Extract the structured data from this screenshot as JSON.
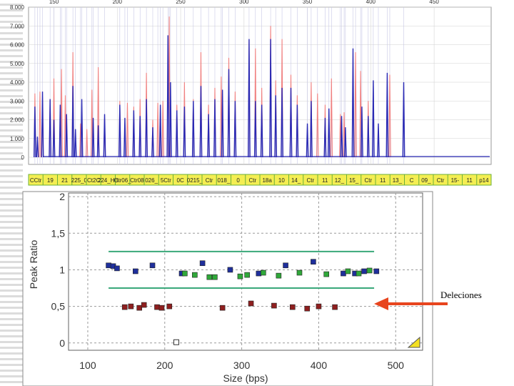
{
  "annotation": {
    "label": "Deleciones",
    "arrow_color": "#e8451e"
  },
  "chart_data": [
    {
      "type": "line",
      "title": "",
      "xlabel": "",
      "ylabel": "",
      "x_ticks": [
        "150",
        "200",
        "250",
        "300",
        "350",
        "400",
        "450"
      ],
      "y_ticks": [
        "8.000",
        "7.000",
        "6.000",
        "5.000",
        "4.000",
        "3.000",
        "2.000",
        "1.000",
        "0"
      ],
      "xlim": [
        130,
        495
      ],
      "ylim": [
        0,
        8000
      ],
      "grid": true,
      "colors": {
        "series_a": "#f08080",
        "series_b": "#2a2ab4"
      },
      "series": [
        {
          "peaks": [
            {
              "x": 135,
              "y": 3400
            },
            {
              "x": 139,
              "y": 3500
            },
            {
              "x": 141,
              "y": 3000
            },
            {
              "x": 147,
              "y": 3100
            },
            {
              "x": 150,
              "y": 4200
            },
            {
              "x": 156,
              "y": 4700
            },
            {
              "x": 159,
              "y": 3300
            },
            {
              "x": 165,
              "y": 5600
            },
            {
              "x": 171,
              "y": 1800
            },
            {
              "x": 176,
              "y": 1500
            },
            {
              "x": 180,
              "y": 3600
            },
            {
              "x": 185,
              "y": 4800
            },
            {
              "x": 190,
              "y": 2100
            },
            {
              "x": 202,
              "y": 3000
            },
            {
              "x": 208,
              "y": 2900
            },
            {
              "x": 213,
              "y": 2700
            },
            {
              "x": 218,
              "y": 3100
            },
            {
              "x": 223,
              "y": 4500
            },
            {
              "x": 228,
              "y": 2000
            },
            {
              "x": 232,
              "y": 2900
            },
            {
              "x": 236,
              "y": 3000
            },
            {
              "x": 241,
              "y": 7500
            },
            {
              "x": 247,
              "y": 2800
            },
            {
              "x": 253,
              "y": 4000
            },
            {
              "x": 260,
              "y": 3100
            },
            {
              "x": 266,
              "y": 5600
            },
            {
              "x": 272,
              "y": 2800
            },
            {
              "x": 277,
              "y": 3700
            },
            {
              "x": 282,
              "y": 4300
            },
            {
              "x": 288,
              "y": 5300
            },
            {
              "x": 293,
              "y": 3500
            },
            {
              "x": 304,
              "y": 6200
            },
            {
              "x": 309,
              "y": 5800
            },
            {
              "x": 314,
              "y": 3700
            },
            {
              "x": 321,
              "y": 7000
            },
            {
              "x": 325,
              "y": 4100
            },
            {
              "x": 330,
              "y": 6300
            },
            {
              "x": 337,
              "y": 4400
            },
            {
              "x": 342,
              "y": 3300
            },
            {
              "x": 353,
              "y": 4000
            },
            {
              "x": 358,
              "y": 3400
            },
            {
              "x": 364,
              "y": 2800
            },
            {
              "x": 369,
              "y": 4200
            },
            {
              "x": 376,
              "y": 2300
            },
            {
              "x": 379,
              "y": 2400
            },
            {
              "x": 388,
              "y": 5600
            },
            {
              "x": 392,
              "y": 4600
            },
            {
              "x": 398,
              "y": 3000
            },
            {
              "x": 415,
              "y": 4400
            }
          ]
        },
        {
          "peaks": [
            {
              "x": 135,
              "y": 2700
            },
            {
              "x": 137,
              "y": 1100
            },
            {
              "x": 141,
              "y": 3500
            },
            {
              "x": 147,
              "y": 3100
            },
            {
              "x": 150,
              "y": 2000
            },
            {
              "x": 155,
              "y": 2800
            },
            {
              "x": 160,
              "y": 2300
            },
            {
              "x": 165,
              "y": 3800
            },
            {
              "x": 167,
              "y": 1500
            },
            {
              "x": 172,
              "y": 3100
            },
            {
              "x": 181,
              "y": 2100
            },
            {
              "x": 185,
              "y": 1700
            },
            {
              "x": 190,
              "y": 2300
            },
            {
              "x": 202,
              "y": 2800
            },
            {
              "x": 206,
              "y": 2100
            },
            {
              "x": 213,
              "y": 2500
            },
            {
              "x": 218,
              "y": 2200
            },
            {
              "x": 223,
              "y": 3100
            },
            {
              "x": 228,
              "y": 1600
            },
            {
              "x": 234,
              "y": 2800
            },
            {
              "x": 240,
              "y": 6500
            },
            {
              "x": 242,
              "y": 4000
            },
            {
              "x": 247,
              "y": 2500
            },
            {
              "x": 253,
              "y": 2700
            },
            {
              "x": 260,
              "y": 3000
            },
            {
              "x": 266,
              "y": 3800
            },
            {
              "x": 272,
              "y": 2300
            },
            {
              "x": 277,
              "y": 3100
            },
            {
              "x": 283,
              "y": 3600
            },
            {
              "x": 288,
              "y": 4700
            },
            {
              "x": 293,
              "y": 3000
            },
            {
              "x": 304,
              "y": 6300
            },
            {
              "x": 309,
              "y": 3000
            },
            {
              "x": 314,
              "y": 2800
            },
            {
              "x": 321,
              "y": 6300
            },
            {
              "x": 325,
              "y": 3300
            },
            {
              "x": 330,
              "y": 3700
            },
            {
              "x": 337,
              "y": 3700
            },
            {
              "x": 342,
              "y": 2800
            },
            {
              "x": 350,
              "y": 1800
            },
            {
              "x": 353,
              "y": 3000
            },
            {
              "x": 364,
              "y": 2100
            },
            {
              "x": 367,
              "y": 2600
            },
            {
              "x": 377,
              "y": 2200
            },
            {
              "x": 380,
              "y": 1600
            },
            {
              "x": 386,
              "y": 5800
            },
            {
              "x": 393,
              "y": 2700
            },
            {
              "x": 398,
              "y": 2200
            },
            {
              "x": 402,
              "y": 4100
            },
            {
              "x": 406,
              "y": 1800
            },
            {
              "x": 413,
              "y": 4500
            },
            {
              "x": 426,
              "y": 4000
            }
          ]
        }
      ],
      "marker_labels": [
        "CCtr",
        "19",
        "21",
        "225_0",
        "Ct2C",
        "224_HB",
        "Ctr06_",
        "Ctr08",
        "026_",
        "5Ctr",
        "0C",
        "0215_",
        "Ctr",
        "018_",
        "0",
        "Ctr",
        "18a",
        "10",
        "14_",
        "Ctr",
        "11",
        "12_",
        "15_",
        "Ctr",
        "11",
        "13_",
        "C",
        "09_",
        "Ctr",
        "15-",
        "11",
        "p14"
      ]
    },
    {
      "type": "scatter",
      "title": "",
      "xlabel": "Size (bps)",
      "ylabel": "Peak Ratio",
      "x_ticks": [
        "100",
        "200",
        "300",
        "400",
        "500"
      ],
      "y_ticks": [
        "2",
        "1,5",
        "1",
        "0,5",
        "0"
      ],
      "xlim": [
        75,
        535
      ],
      "ylim": [
        -0.1,
        2.05
      ],
      "grid": true,
      "thresholds": [
        1.25,
        0.75
      ],
      "colors": {
        "blue": "#1f2f9c",
        "green": "#30a83a",
        "red": "#8f1f1f",
        "hollow": "#ffffff",
        "threshold": "#3aa87a"
      },
      "series": [
        {
          "color": "blue",
          "points": [
            [
              127,
              1.06
            ],
            [
              133,
              1.05
            ],
            [
              138,
              1.02
            ],
            [
              162,
              0.98
            ],
            [
              184,
              1.06
            ],
            [
              222,
              0.95
            ],
            [
              249,
              1.09
            ],
            [
              285,
              1.0
            ],
            [
              322,
              0.95
            ],
            [
              357,
              1.06
            ],
            [
              393,
              1.11
            ],
            [
              432,
              0.95
            ],
            [
              447,
              0.95
            ],
            [
              459,
              0.98
            ],
            [
              475,
              0.98
            ]
          ]
        },
        {
          "color": "green",
          "points": [
            [
              226,
              0.95
            ],
            [
              239,
              0.93
            ],
            [
              258,
              0.9
            ],
            [
              265,
              0.9
            ],
            [
              298,
              0.91
            ],
            [
              307,
              0.93
            ],
            [
              328,
              0.96
            ],
            [
              348,
              0.92
            ],
            [
              375,
              0.96
            ],
            [
              410,
              0.94
            ],
            [
              438,
              0.98
            ],
            [
              452,
              0.95
            ],
            [
              466,
              0.99
            ]
          ]
        },
        {
          "color": "red",
          "points": [
            [
              148,
              0.49
            ],
            [
              156,
              0.5
            ],
            [
              167,
              0.48
            ],
            [
              173,
              0.52
            ],
            [
              190,
              0.49
            ],
            [
              196,
              0.48
            ],
            [
              206,
              0.5
            ],
            [
              275,
              0.48
            ],
            [
              312,
              0.54
            ],
            [
              342,
              0.51
            ],
            [
              366,
              0.49
            ],
            [
              385,
              0.47
            ],
            [
              400,
              0.5
            ],
            [
              421,
              0.49
            ]
          ]
        },
        {
          "color": "hollow",
          "points": [
            [
              215,
              0.01
            ]
          ]
        }
      ]
    }
  ]
}
